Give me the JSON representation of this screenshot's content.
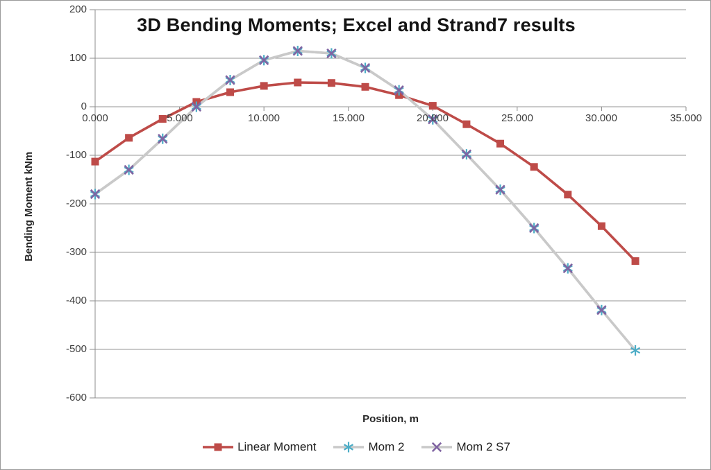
{
  "title": "3D Bending Moments; Excel and Strand7 results",
  "axes": {
    "x_label": "Position, m",
    "y_label": "Bending Moment kNm",
    "x_ticks": [
      "0.000",
      "5.000",
      "10.000",
      "15.000",
      "20.000",
      "25.000",
      "30.000",
      "35.000"
    ],
    "y_ticks": [
      "200",
      "100",
      "0",
      "-100",
      "-200",
      "-300",
      "-400",
      "-500",
      "-600"
    ]
  },
  "colors": {
    "grid": "#949494",
    "axis": "#8c8c8c",
    "tick_text": "#3f3f3f",
    "title_text": "#141414"
  },
  "chart_data": {
    "type": "line",
    "title": "3D Bending Moments; Excel and Strand7 results",
    "xlabel": "Position, m",
    "ylabel": "Bending Moment kNm",
    "xlim": [
      0,
      35
    ],
    "ylim": [
      -600,
      200
    ],
    "grid": "horizontal",
    "legend_position": "bottom",
    "x": [
      0,
      2,
      4,
      6,
      8,
      10,
      12,
      14,
      16,
      18,
      20,
      22,
      24,
      26,
      28,
      30,
      32
    ],
    "series": [
      {
        "name": "Linear Moment",
        "marker": "square",
        "marker_color": "#be4b48",
        "line_color": "#be4b48",
        "values": [
          -113,
          -64,
          -25,
          10,
          30,
          43,
          50,
          49,
          41,
          24,
          2,
          -36,
          -76,
          -124,
          -181,
          -246,
          -318
        ]
      },
      {
        "name": "Mom 2",
        "marker": "asterisk",
        "marker_color": "#4bacc6",
        "line_color": "#c9c9c9",
        "values": [
          -180,
          -130,
          -66,
          0,
          55,
          96,
          115,
          110,
          80,
          34,
          -26,
          -98,
          -171,
          -250,
          -333,
          -419,
          -502
        ]
      },
      {
        "name": "Mom 2 S7",
        "marker": "x",
        "marker_color": "#8064a2",
        "line_color": "#c9c9c9",
        "values": [
          -180,
          -130,
          -66,
          0,
          55,
          96,
          115,
          110,
          80,
          34,
          -26,
          -98,
          -171,
          -250,
          -333,
          -419,
          null
        ]
      }
    ]
  }
}
